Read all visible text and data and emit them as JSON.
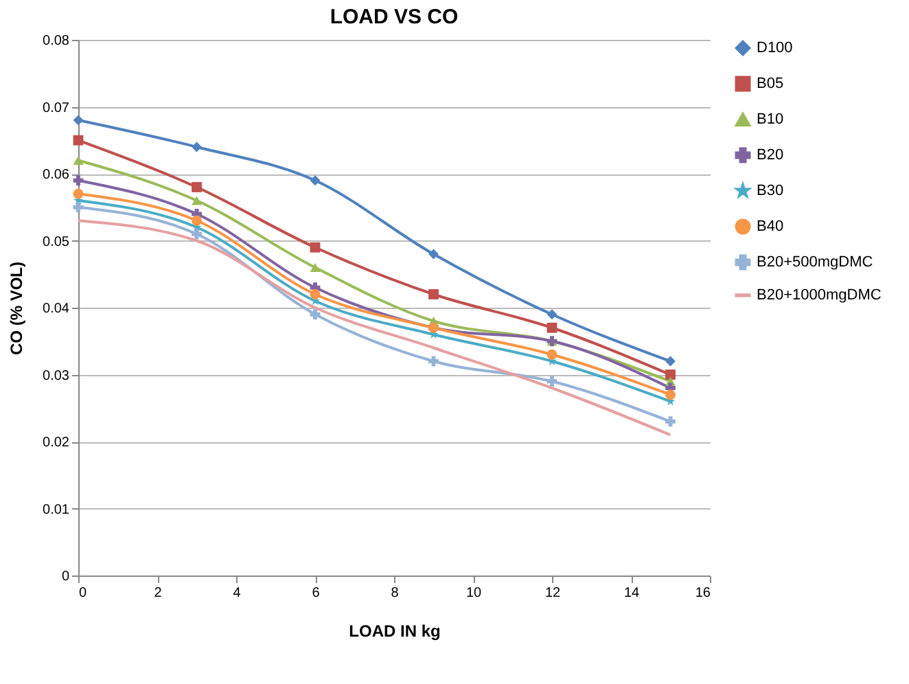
{
  "chart_data": {
    "type": "line",
    "title": "LOAD VS CO",
    "xlabel": "LOAD IN kg",
    "ylabel": "CO (% VOL)",
    "x": [
      0,
      3,
      6,
      9,
      12,
      15
    ],
    "series": [
      {
        "name": "D100",
        "color": "#4f81bd",
        "marker": "diamond",
        "values": [
          0.068,
          0.064,
          0.059,
          0.048,
          0.039,
          0.032
        ]
      },
      {
        "name": "B05",
        "color": "#c0504d",
        "marker": "square",
        "values": [
          0.065,
          0.058,
          0.049,
          0.042,
          0.037,
          0.03
        ]
      },
      {
        "name": "B10",
        "color": "#9bbb59",
        "marker": "triangle",
        "values": [
          0.062,
          0.056,
          0.046,
          0.038,
          0.035,
          0.029
        ]
      },
      {
        "name": "B20",
        "color": "#8064a2",
        "marker": "cross",
        "values": [
          0.059,
          0.054,
          0.043,
          0.037,
          0.035,
          0.028
        ]
      },
      {
        "name": "B30",
        "color": "#4bacc6",
        "marker": "star",
        "values": [
          0.056,
          0.052,
          0.041,
          0.036,
          0.032,
          0.026
        ]
      },
      {
        "name": "B40",
        "color": "#f79646",
        "marker": "circle",
        "values": [
          0.057,
          0.053,
          0.042,
          0.037,
          0.033,
          0.027
        ]
      },
      {
        "name": "B20+500mgDMC",
        "color": "#95b3d7",
        "marker": "cross",
        "values": [
          0.055,
          0.051,
          0.039,
          0.032,
          0.029,
          0.023
        ]
      },
      {
        "name": "B20+1000mgDMC",
        "color": "#e6a0a0",
        "marker": "none",
        "values": [
          0.053,
          0.05,
          0.04,
          0.034,
          0.028,
          0.021
        ]
      }
    ],
    "xlim": [
      0,
      16
    ],
    "xticks": [
      0,
      2,
      4,
      6,
      8,
      10,
      12,
      14,
      16
    ],
    "ylim": [
      0,
      0.08
    ],
    "yticks": [
      0,
      0.01,
      0.02,
      0.03,
      0.04,
      0.05,
      0.06,
      0.07,
      0.08
    ],
    "grid": "y",
    "legend": "right",
    "line_style": "solid"
  }
}
